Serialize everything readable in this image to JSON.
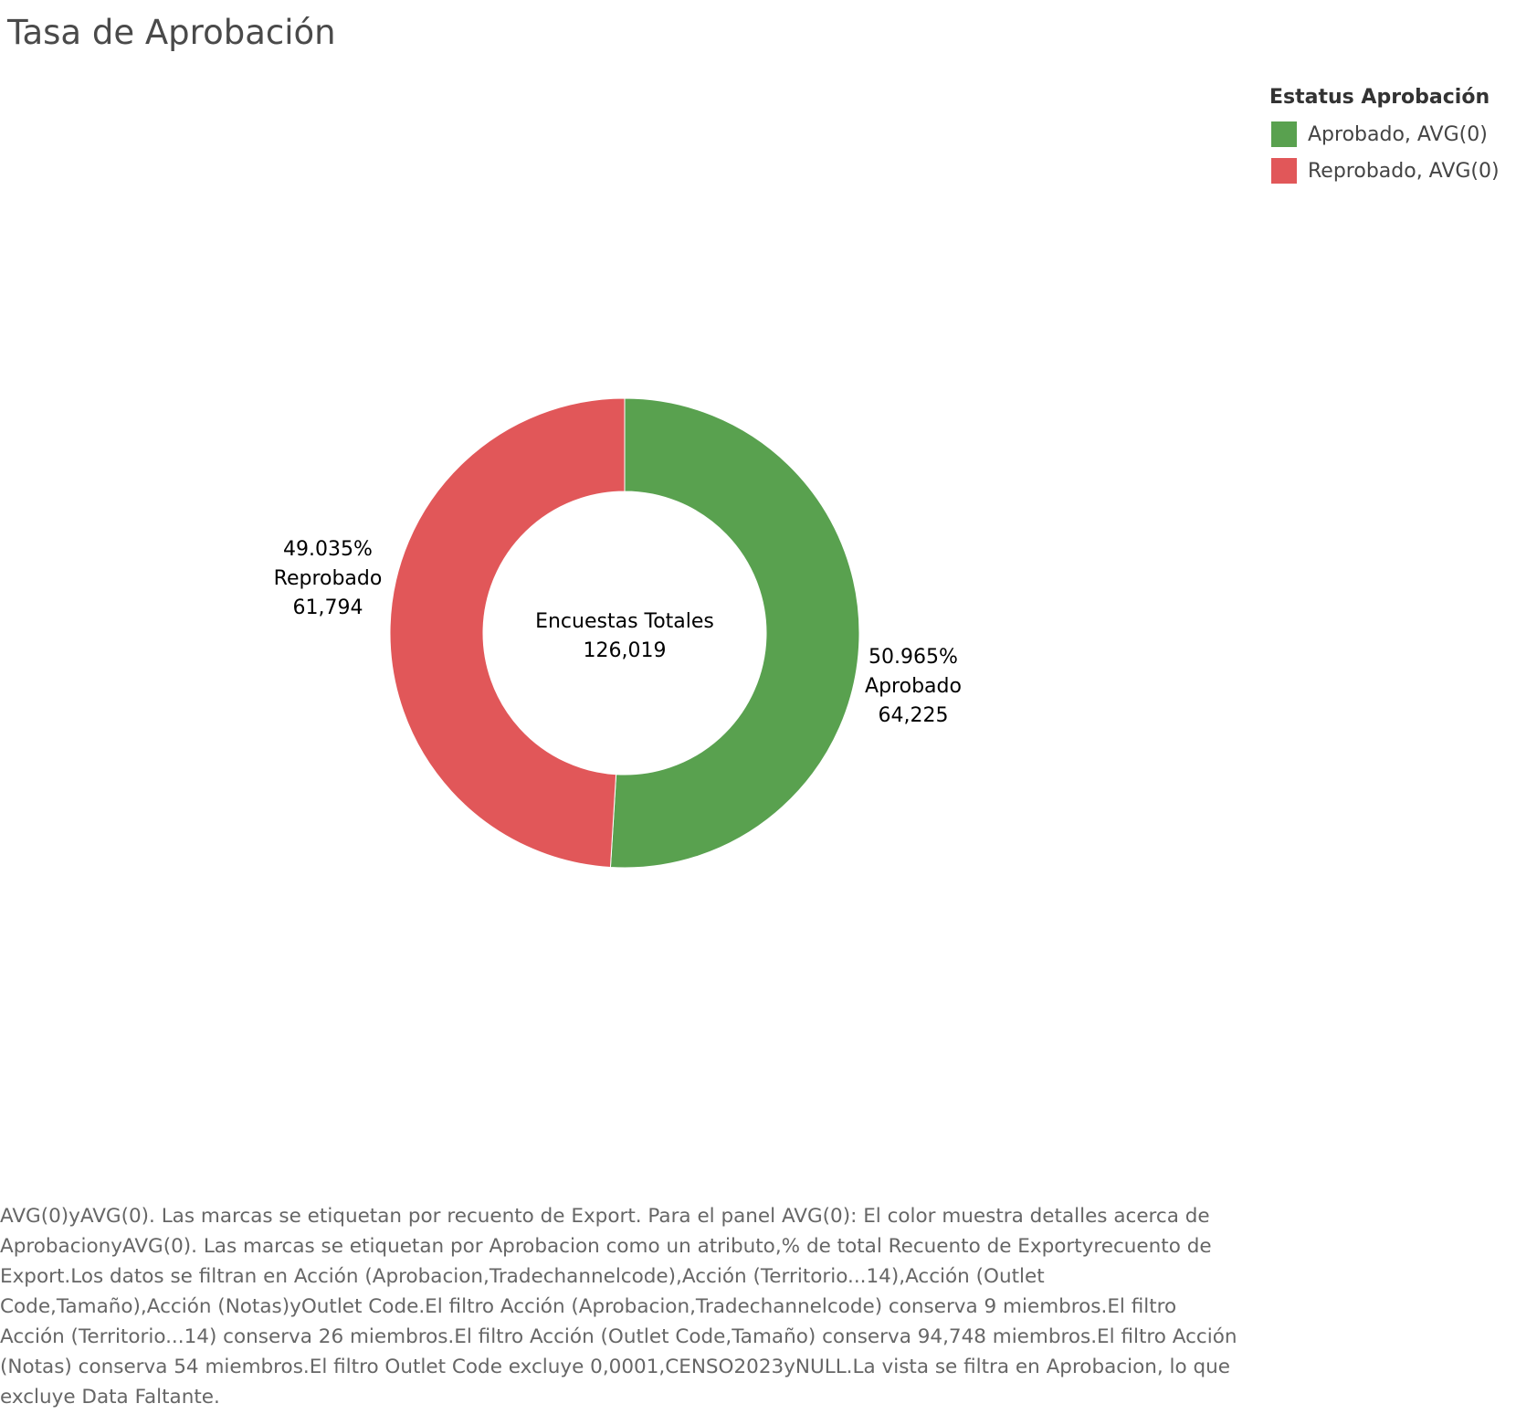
{
  "title": "Tasa de Aprobación",
  "legend": {
    "title": "Estatus Aprobación",
    "items": [
      {
        "label": "Aprobado, AVG(0)",
        "color": "#59a14f"
      },
      {
        "label": "Reprobado, AVG(0)",
        "color": "#e15759"
      }
    ]
  },
  "center": {
    "label": "Encuestas Totales",
    "value": "126,019"
  },
  "slice_labels": [
    {
      "percent": "50.965%",
      "name": "Aprobado",
      "count": "64,225"
    },
    {
      "percent": "49.035%",
      "name": "Reprobado",
      "count": "61,794"
    }
  ],
  "caption": "AVG(0)yAVG(0). Las marcas se etiquetan por recuento de Export. Para el panel AVG(0): El color muestra detalles acerca de AprobacionyAVG(0). Las marcas se etiquetan por Aprobacion como un atributo,% de total Recuento de Exportyrecuento de Export.Los datos se filtran en Acción (Aprobacion,Tradechannelcode),Acción (Territorio...14),Acción (Outlet Code,Tamaño),Acción (Notas)yOutlet Code.El filtro Acción (Aprobacion,Tradechannelcode) conserva 9 miembros.El filtro Acción (Territorio...14) conserva 26 miembros.El filtro Acción (Outlet Code,Tamaño) conserva 94,748 miembros.El filtro Acción (Notas) conserva 54 miembros.El filtro Outlet Code excluye 0,0001,CENSO2023yNULL.La vista se filtra en Aprobacion, lo que excluye Data Faltante.",
  "chart_data": {
    "type": "pie",
    "variant": "donut",
    "categories": [
      "Aprobado",
      "Reprobado"
    ],
    "values": [
      64225,
      61794
    ],
    "percents": [
      50.965,
      49.035
    ],
    "colors": [
      "#59a14f",
      "#e15759"
    ],
    "total": 126019,
    "legend_position": "top-right"
  }
}
